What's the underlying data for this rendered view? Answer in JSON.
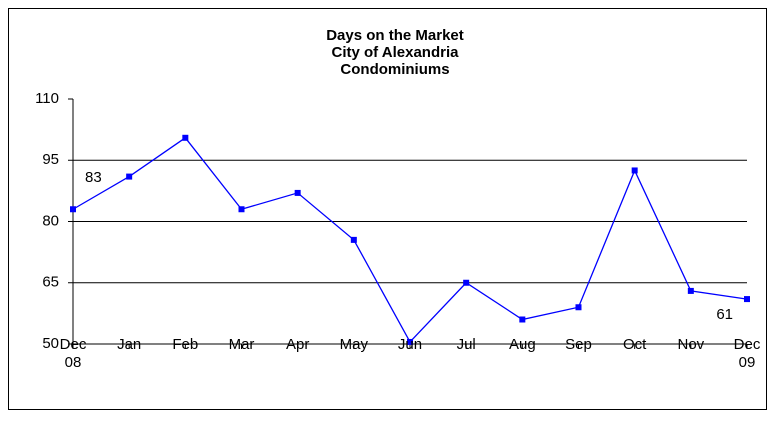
{
  "chart_data": {
    "type": "line",
    "title_lines": [
      "Days on the Market",
      "City of Alexandria",
      "Condominiums"
    ],
    "categories": [
      "Dec\n08",
      "Jan",
      "Feb",
      "Mar",
      "Apr",
      "May",
      "Jun",
      "Jul",
      "Aug",
      "Sep",
      "Oct",
      "Nov",
      "Dec\n09"
    ],
    "series": [
      {
        "color": "#0000ff",
        "values": [
          83,
          91,
          100.5,
          83,
          87,
          75.5,
          50.5,
          65,
          56,
          59,
          92.5,
          63,
          61
        ],
        "value_labels": [
          "83",
          null,
          null,
          null,
          null,
          null,
          null,
          null,
          null,
          null,
          null,
          null,
          "61"
        ]
      }
    ],
    "ylim": [
      50,
      110
    ],
    "yticks": [
      50,
      65,
      80,
      95,
      110
    ],
    "grid": true
  }
}
